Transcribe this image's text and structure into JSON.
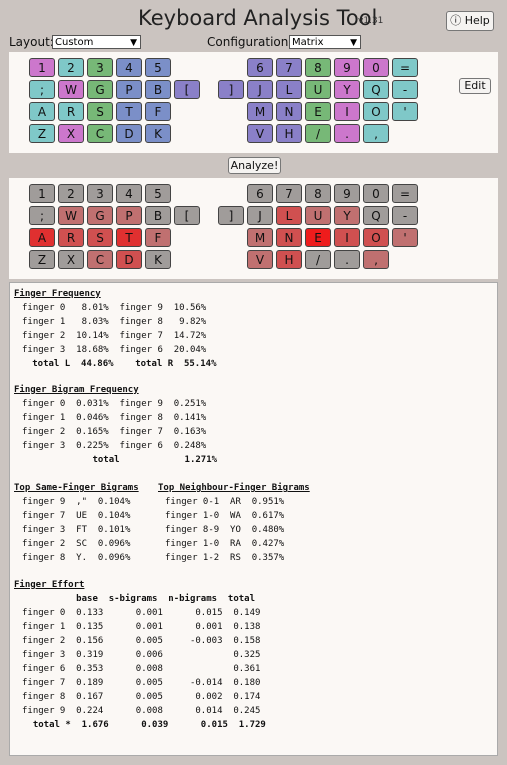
{
  "header": {
    "title": "Keyboard Analysis Tool",
    "version": "v1.31",
    "help_label": "ⓘ Help",
    "layout_label": "Layout:",
    "layout_value": "Custom",
    "config_label": "Configuration:",
    "config_value": "Matrix"
  },
  "buttons": {
    "edit": "Edit",
    "analyze": "Analyze!"
  },
  "colors": {
    "top_pink": "#cc77cc",
    "top_teal": "#7fc8c8",
    "top_green": "#77b877",
    "top_blue": "#7b8fc8",
    "top_purple": "#8a80c8",
    "heat_grey": "#a09c9a",
    "heat_light": "#c07070",
    "heat_mid": "#d05050",
    "heat_strong": "#e03030",
    "heat_max": "#ee1c1c"
  },
  "layout_top": {
    "left": [
      [
        {
          "k": "1",
          "c": "top_pink"
        },
        {
          "k": "2",
          "c": "top_teal"
        },
        {
          "k": "3",
          "c": "top_green"
        },
        {
          "k": "4",
          "c": "top_blue"
        },
        {
          "k": "5",
          "c": "top_blue"
        }
      ],
      [
        {
          "k": ";",
          "c": "top_teal"
        },
        {
          "k": "W",
          "c": "top_pink"
        },
        {
          "k": "G",
          "c": "top_green"
        },
        {
          "k": "P",
          "c": "top_blue"
        },
        {
          "k": "B",
          "c": "top_blue"
        },
        {
          "k": "[",
          "c": "top_purple"
        }
      ],
      [
        {
          "k": "A",
          "c": "top_teal"
        },
        {
          "k": "R",
          "c": "top_teal"
        },
        {
          "k": "S",
          "c": "top_green"
        },
        {
          "k": "T",
          "c": "top_blue"
        },
        {
          "k": "F",
          "c": "top_blue"
        }
      ],
      [
        {
          "k": "Z",
          "c": "top_teal"
        },
        {
          "k": "X",
          "c": "top_pink"
        },
        {
          "k": "C",
          "c": "top_green"
        },
        {
          "k": "D",
          "c": "top_blue"
        },
        {
          "k": "K",
          "c": "top_blue"
        }
      ]
    ],
    "right": [
      [
        {
          "k": "6",
          "c": "top_purple"
        },
        {
          "k": "7",
          "c": "top_purple"
        },
        {
          "k": "8",
          "c": "top_green"
        },
        {
          "k": "9",
          "c": "top_pink"
        },
        {
          "k": "0",
          "c": "top_pink"
        },
        {
          "k": "=",
          "c": "top_teal"
        }
      ],
      [
        {
          "k": "]",
          "c": "top_purple"
        },
        {
          "k": "J",
          "c": "top_purple"
        },
        {
          "k": "L",
          "c": "top_purple"
        },
        {
          "k": "U",
          "c": "top_green"
        },
        {
          "k": "Y",
          "c": "top_pink"
        },
        {
          "k": "Q",
          "c": "top_teal"
        },
        {
          "k": "-",
          "c": "top_teal"
        }
      ],
      [
        {
          "k": "M",
          "c": "top_purple"
        },
        {
          "k": "N",
          "c": "top_purple"
        },
        {
          "k": "E",
          "c": "top_green"
        },
        {
          "k": "I",
          "c": "top_pink"
        },
        {
          "k": "O",
          "c": "top_teal"
        },
        {
          "k": "'",
          "c": "top_teal"
        }
      ],
      [
        {
          "k": "V",
          "c": "top_purple"
        },
        {
          "k": "H",
          "c": "top_purple"
        },
        {
          "k": "/",
          "c": "top_green"
        },
        {
          "k": ".",
          "c": "top_pink"
        },
        {
          "k": ",",
          "c": "top_teal"
        }
      ]
    ]
  },
  "layout_heat": {
    "left": [
      [
        {
          "k": "1",
          "c": "heat_grey"
        },
        {
          "k": "2",
          "c": "heat_grey"
        },
        {
          "k": "3",
          "c": "heat_grey"
        },
        {
          "k": "4",
          "c": "heat_grey"
        },
        {
          "k": "5",
          "c": "heat_grey"
        }
      ],
      [
        {
          "k": ";",
          "c": "heat_grey"
        },
        {
          "k": "W",
          "c": "heat_light"
        },
        {
          "k": "G",
          "c": "heat_light"
        },
        {
          "k": "P",
          "c": "heat_light"
        },
        {
          "k": "B",
          "c": "heat_grey"
        },
        {
          "k": "[",
          "c": "heat_grey"
        }
      ],
      [
        {
          "k": "A",
          "c": "heat_strong"
        },
        {
          "k": "R",
          "c": "heat_mid"
        },
        {
          "k": "S",
          "c": "heat_mid"
        },
        {
          "k": "T",
          "c": "heat_strong"
        },
        {
          "k": "F",
          "c": "heat_light"
        }
      ],
      [
        {
          "k": "Z",
          "c": "heat_grey"
        },
        {
          "k": "X",
          "c": "heat_grey"
        },
        {
          "k": "C",
          "c": "heat_light"
        },
        {
          "k": "D",
          "c": "heat_mid"
        },
        {
          "k": "K",
          "c": "heat_grey"
        }
      ]
    ],
    "right": [
      [
        {
          "k": "6",
          "c": "heat_grey"
        },
        {
          "k": "7",
          "c": "heat_grey"
        },
        {
          "k": "8",
          "c": "heat_grey"
        },
        {
          "k": "9",
          "c": "heat_grey"
        },
        {
          "k": "0",
          "c": "heat_grey"
        },
        {
          "k": "=",
          "c": "heat_grey"
        }
      ],
      [
        {
          "k": "]",
          "c": "heat_grey"
        },
        {
          "k": "J",
          "c": "heat_grey"
        },
        {
          "k": "L",
          "c": "heat_mid"
        },
        {
          "k": "U",
          "c": "heat_light"
        },
        {
          "k": "Y",
          "c": "heat_light"
        },
        {
          "k": "Q",
          "c": "heat_grey"
        },
        {
          "k": "-",
          "c": "heat_grey"
        }
      ],
      [
        {
          "k": "M",
          "c": "heat_light"
        },
        {
          "k": "N",
          "c": "heat_mid"
        },
        {
          "k": "E",
          "c": "heat_max"
        },
        {
          "k": "I",
          "c": "heat_mid"
        },
        {
          "k": "O",
          "c": "heat_mid"
        },
        {
          "k": "'",
          "c": "heat_light"
        }
      ],
      [
        {
          "k": "V",
          "c": "heat_light"
        },
        {
          "k": "H",
          "c": "heat_mid"
        },
        {
          "k": "/",
          "c": "heat_grey"
        },
        {
          "k": ".",
          "c": "heat_grey"
        },
        {
          "k": ",",
          "c": "heat_light"
        }
      ]
    ]
  },
  "stats": {
    "finger_frequency": {
      "heading": "Finger Frequency",
      "rows": [
        "finger 0   8.01%  finger 9  10.56%",
        "finger 1   8.03%  finger 8   9.82%",
        "finger 2  10.14%  finger 7  14.72%",
        "finger 3  18.68%  finger 6  20.04%"
      ],
      "total": "   total L  44.86%    total R  55.14%"
    },
    "bigram_frequency": {
      "heading": "Finger Bigram Frequency",
      "rows": [
        "finger 0  0.031%  finger 9  0.251%",
        "finger 1  0.046%  finger 8  0.141%",
        "finger 2  0.165%  finger 7  0.163%",
        "finger 3  0.225%  finger 6  0.248%"
      ],
      "total": "             total            1.271%"
    },
    "same_finger": {
      "heading": "Top Same-Finger Bigrams",
      "rows": [
        "finger 9  ,\"  0.104%",
        "finger 7  UE  0.104%",
        "finger 3  FT  0.101%",
        "finger 2  SC  0.096%",
        "finger 8  Y.  0.096%"
      ]
    },
    "neighbour_finger": {
      "heading": "Top Neighbour-Finger Bigrams",
      "rows": [
        "finger 0-1  AR  0.951%",
        "finger 1-0  WA  0.617%",
        "finger 8-9  YO  0.480%",
        "finger 1-0  RA  0.427%",
        "finger 1-2  RS  0.357%"
      ]
    },
    "effort": {
      "heading": "Finger Effort",
      "columns": "          base  s-bigrams  n-bigrams  total",
      "rows": [
        "finger 0  0.133      0.001      0.015  0.149",
        "finger 1  0.135      0.001      0.001  0.138",
        "finger 2  0.156      0.005     -0.003  0.158",
        "finger 3  0.319      0.006             0.325",
        "finger 6  0.353      0.008             0.361",
        "finger 7  0.189      0.005     -0.014  0.180",
        "finger 8  0.167      0.005      0.002  0.174",
        "finger 9  0.224      0.008      0.014  0.245"
      ],
      "total": "  total *  1.676      0.039      0.015  1.729"
    }
  }
}
